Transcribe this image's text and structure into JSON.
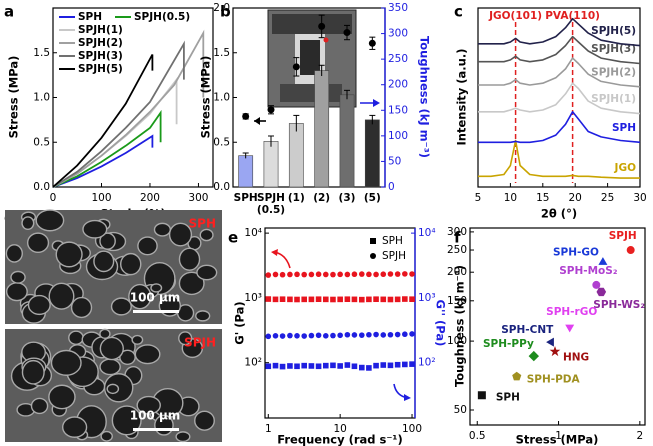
{
  "panel_labels": [
    "a",
    "b",
    "c",
    "d",
    "e",
    "f"
  ],
  "images": [
    {
      "label": "SPH",
      "scale_bar": "100 μm"
    },
    {
      "label": "SPJH",
      "scale_bar": "100 μm"
    }
  ],
  "chart_data": [
    {
      "type": "line",
      "xlabel": "Strain (%)",
      "ylabel": "Stress (MPa)",
      "xlim": [
        0,
        330
      ],
      "xticks": [
        0,
        100,
        200,
        300
      ],
      "ylim": [
        0,
        2.0
      ],
      "yticks": [
        {
          "value": 0,
          "label": "0.0"
        },
        {
          "value": 0.5,
          "label": "0.5"
        },
        {
          "value": 1,
          "label": "1.0"
        },
        {
          "value": 1.5,
          "label": "1.5"
        }
      ],
      "legend": "upper left",
      "series": [
        {
          "name": "SPH",
          "color": "#1f1fe0",
          "x": [
            0,
            50,
            100,
            150,
            205,
            205
          ],
          "values": [
            0,
            0.1,
            0.23,
            0.38,
            0.57,
            0.44
          ]
        },
        {
          "name": "SPJH(0.5)",
          "color": "#1a9a1a",
          "x": [
            0,
            50,
            100,
            150,
            200,
            222,
            222
          ],
          "values": [
            0,
            0.12,
            0.28,
            0.46,
            0.66,
            0.83,
            0.5
          ]
        },
        {
          "name": "SPJH(1)",
          "color": "#c8c8c8",
          "x": [
            0,
            50,
            100,
            150,
            200,
            255,
            255
          ],
          "values": [
            0,
            0.15,
            0.35,
            0.57,
            0.82,
            1.2,
            0.7
          ]
        },
        {
          "name": "SPJH(2)",
          "color": "#a0a0a0",
          "x": [
            0,
            50,
            100,
            150,
            200,
            250,
            310,
            310
          ],
          "values": [
            0,
            0.15,
            0.35,
            0.58,
            0.84,
            1.14,
            1.72,
            1.0
          ]
        },
        {
          "name": "SPJH(3)",
          "color": "#707070",
          "x": [
            0,
            50,
            100,
            150,
            200,
            270,
            270
          ],
          "values": [
            0,
            0.17,
            0.4,
            0.66,
            0.95,
            1.6,
            1.2
          ]
        },
        {
          "name": "SPJH(5)",
          "color": "#000000",
          "x": [
            0,
            50,
            100,
            150,
            205,
            205
          ],
          "values": [
            0,
            0.24,
            0.55,
            0.93,
            1.48,
            1.3
          ]
        }
      ]
    },
    {
      "type": "bar",
      "ylabel": "Stress (MPa)",
      "y2label": "Toughness (kJ m⁻³)",
      "y2color": "#1f1fe0",
      "categories": [
        "SPH",
        "SPJH\n(0.5)",
        "(1)",
        "(2)",
        "(3)",
        "(5)"
      ],
      "ylim": [
        0,
        2.0
      ],
      "yticks": [
        {
          "value": 0,
          "label": "0.0"
        },
        {
          "value": 0.5,
          "label": "0.5"
        },
        {
          "value": 1,
          "label": "1.0"
        },
        {
          "value": 1.5,
          "label": "1.5"
        },
        {
          "value": 2,
          "label": "2.0"
        }
      ],
      "y2lim": [
        0,
        350
      ],
      "y2ticks": [
        0,
        50,
        100,
        150,
        200,
        250,
        300,
        350
      ],
      "series": [
        {
          "values": [
            0.35,
            0.51,
            0.71,
            1.3,
            1.03,
            0.75
          ],
          "errors": [
            0.03,
            0.06,
            0.09,
            0.06,
            0.05,
            0.05
          ],
          "colors": [
            "#9aa6f2",
            "#dcdcdc",
            "#cccccc",
            "#a0a0a0",
            "#6e6e6e",
            "#2e2e2e"
          ]
        },
        {
          "axis": "y2",
          "color": "#000000",
          "values": [
            138,
            151,
            235,
            314,
            302,
            281
          ],
          "errors": [
            5,
            8,
            18,
            22,
            14,
            12
          ]
        }
      ]
    },
    {
      "type": "line",
      "xlabel": "2θ (°)",
      "ylabel": "Intensity (a.u.)",
      "xlim": [
        5,
        30
      ],
      "xticks": [
        5,
        10,
        15,
        20,
        25,
        30
      ],
      "ylim": [
        0,
        100
      ],
      "annotations": [
        {
          "text": "JGO(101)",
          "x": 10.8,
          "color": "#e02020"
        },
        {
          "text": "PVA(110)",
          "x": 19.6,
          "color": "#e02020"
        }
      ],
      "x": [
        5,
        7,
        9,
        10,
        10.8,
        11.5,
        13,
        15,
        17,
        18.5,
        19.6,
        20.5,
        22,
        24,
        27,
        30
      ],
      "series": [
        {
          "name": "JGO",
          "color": "#c9a400",
          "values": [
            6,
            6,
            7,
            12,
            26,
            12,
            7,
            6,
            6,
            6,
            6.5,
            6,
            6,
            5.5,
            5,
            5
          ]
        },
        {
          "name": "SPH",
          "color": "#1f1fe0",
          "values": [
            25,
            25,
            25,
            25,
            25.5,
            25,
            25,
            26,
            29,
            35,
            42,
            38,
            31,
            28,
            26,
            25
          ]
        },
        {
          "name": "SPJH(1)",
          "color": "#c8c8c8",
          "values": [
            42,
            42,
            42,
            43,
            44,
            43,
            42,
            43,
            46,
            52,
            58,
            55,
            48,
            44,
            42,
            41
          ]
        },
        {
          "name": "SPJH(2)",
          "color": "#9a9a9a",
          "values": [
            57,
            57,
            57,
            58,
            60,
            58,
            57,
            58,
            61,
            66,
            72,
            69,
            63,
            59,
            57,
            56
          ]
        },
        {
          "name": "SPJH(3)",
          "color": "#555555",
          "values": [
            70,
            70,
            70,
            71,
            73,
            71,
            70,
            71,
            74,
            79,
            84,
            81,
            76,
            72,
            70,
            69
          ]
        },
        {
          "name": "SPJH(5)",
          "color": "#22224a",
          "values": [
            80,
            80,
            80,
            81,
            83,
            81,
            80,
            81,
            84,
            89,
            94,
            91,
            86,
            82,
            80,
            79
          ]
        }
      ]
    },
    {
      "type": "scatter",
      "xlabel": "Frequency (rad s⁻¹)",
      "ylabel": "G' (Pa)",
      "y2label": "G'' (Pa)",
      "y2color": "#1f1fe0",
      "xscale": "log",
      "yscale": "log",
      "y2scale": "log",
      "xlim": [
        0.9,
        110
      ],
      "xticks": [
        1,
        10,
        100
      ],
      "ylim": [
        14,
        12000
      ],
      "yticks": [
        {
          "value": 100,
          "label": "10²"
        },
        {
          "value": 1000,
          "label": "10³"
        },
        {
          "value": 10000,
          "label": "10⁴"
        }
      ],
      "y2lim": [
        14,
        12000
      ],
      "y2ticks": [
        {
          "value": 100,
          "label": "10²"
        },
        {
          "value": 1000,
          "label": "10³"
        },
        {
          "value": 10000,
          "label": "10⁴"
        }
      ],
      "legend": "upper right",
      "legend_color": "#000000",
      "x": [
        1,
        1.26,
        1.58,
        2,
        2.51,
        3.16,
        3.98,
        5.01,
        6.31,
        7.94,
        10,
        12.6,
        15.8,
        20,
        25.1,
        31.6,
        39.8,
        50.1,
        63.1,
        79.4,
        100
      ],
      "series": [
        {
          "name": "SPH",
          "marker": "square",
          "color": "#e8141e",
          "values": [
            960,
            950,
            955,
            950,
            945,
            950,
            950,
            955,
            950,
            945,
            950,
            955,
            950,
            940,
            950,
            955,
            950,
            945,
            950,
            960,
            955
          ]
        },
        {
          "name": "SPJH",
          "marker": "circle",
          "color": "#e8141e",
          "values": [
            2250,
            2300,
            2280,
            2300,
            2310,
            2290,
            2300,
            2320,
            2300,
            2290,
            2310,
            2300,
            2320,
            2330,
            2310,
            2300,
            2320,
            2340,
            2330,
            2350,
            2340
          ]
        },
        {
          "marker": "square",
          "axis": "y2",
          "color": "#1f1fe0",
          "values": [
            88,
            90,
            87,
            89,
            88,
            90,
            89,
            88,
            90,
            91,
            89,
            92,
            88,
            84,
            83,
            90,
            92,
            91,
            93,
            94,
            95
          ]
        },
        {
          "marker": "circle",
          "axis": "y2",
          "color": "#1f1fe0",
          "values": [
            255,
            260,
            258,
            262,
            260,
            258,
            262,
            265,
            260,
            262,
            265,
            270,
            268,
            266,
            270,
            272,
            268,
            270,
            272,
            275,
            278
          ]
        }
      ]
    },
    {
      "type": "scatter",
      "xlabel": "Stress (MPa)",
      "ylabel": "Toughness (kJ m⁻³)",
      "xscale": "log",
      "yscale": "log",
      "xlim": [
        0.47,
        2.09
      ],
      "xticks": [
        0.5,
        1,
        2
      ],
      "ylim": [
        43,
        312
      ],
      "yticks": [
        50,
        100,
        150,
        200,
        250,
        300
      ],
      "series": [
        {
          "name": "SPJH",
          "marker": "circle",
          "color": "#e82020",
          "x": [
            1.85
          ],
          "values": [
            250
          ]
        },
        {
          "name": "SPH-GO",
          "marker": "triangle",
          "color": "#1a3ad8",
          "x": [
            1.46
          ],
          "values": [
            221
          ]
        },
        {
          "name": "SPH-MoS₂",
          "marker": "circle",
          "color": "#b040d0",
          "x": [
            1.38
          ],
          "values": [
            176
          ]
        },
        {
          "name": "SPH-WS₂",
          "marker": "hexagon",
          "color": "#8a2a9a",
          "x": [
            1.44
          ],
          "values": [
            164
          ]
        },
        {
          "name": "SPH-rGO",
          "marker": "triangle-down",
          "color": "#e040f0",
          "x": [
            1.1
          ],
          "values": [
            115
          ]
        },
        {
          "name": "SPH-CNT",
          "marker": "triangle-left",
          "color": "#1a237e",
          "x": [
            0.94
          ],
          "values": [
            99
          ]
        },
        {
          "name": "SPH-PPy",
          "marker": "diamond",
          "color": "#1e8c1e",
          "x": [
            0.81
          ],
          "values": [
            86
          ]
        },
        {
          "name": "HNG",
          "marker": "star",
          "color": "#a01010",
          "x": [
            0.97
          ],
          "values": [
            90
          ]
        },
        {
          "name": "SPH-PDA",
          "marker": "pentagon",
          "color": "#a09020",
          "x": [
            0.7
          ],
          "values": [
            70
          ]
        },
        {
          "name": "SPH",
          "marker": "square",
          "color": "#111111",
          "x": [
            0.52
          ],
          "values": [
            58
          ]
        }
      ]
    }
  ]
}
